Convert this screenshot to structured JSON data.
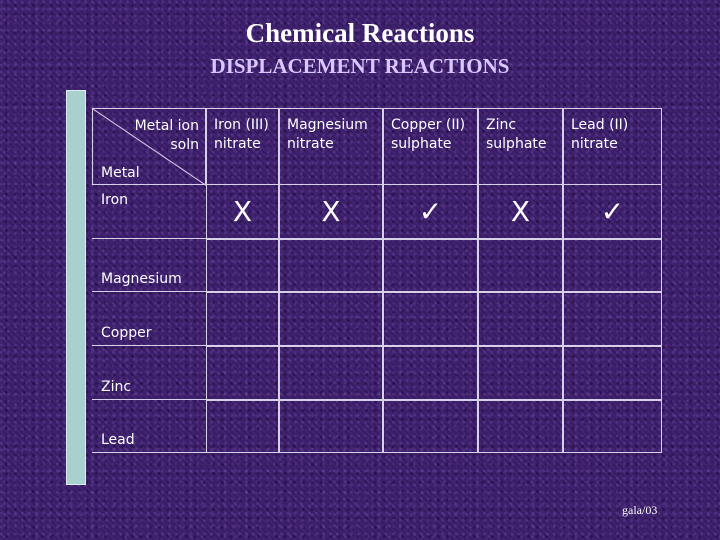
{
  "title": "Chemical Reactions",
  "subtitle": "DISPLACEMENT REACTIONS",
  "table": {
    "corner_ion_label": "Metal ion soln",
    "corner_metal_label": "Metal",
    "columns": [
      "Iron (III) nitrate",
      "Magnesium nitrate",
      "Copper (II) sulphate",
      "Zinc sulphate",
      "Lead (II) nitrate"
    ],
    "rows": [
      {
        "metal": "Iron",
        "results": [
          "X",
          "X",
          "✓",
          "X",
          "✓"
        ]
      },
      {
        "metal": "Magnesium",
        "results": [
          "",
          "",
          "",
          "",
          ""
        ]
      },
      {
        "metal": "Copper",
        "results": [
          "",
          "",
          "",
          "",
          ""
        ]
      },
      {
        "metal": "Zinc",
        "results": [
          "",
          "",
          "",
          "",
          ""
        ]
      },
      {
        "metal": "Lead",
        "results": [
          "",
          "",
          "",
          "",
          ""
        ]
      }
    ]
  },
  "footer": "gala/03"
}
